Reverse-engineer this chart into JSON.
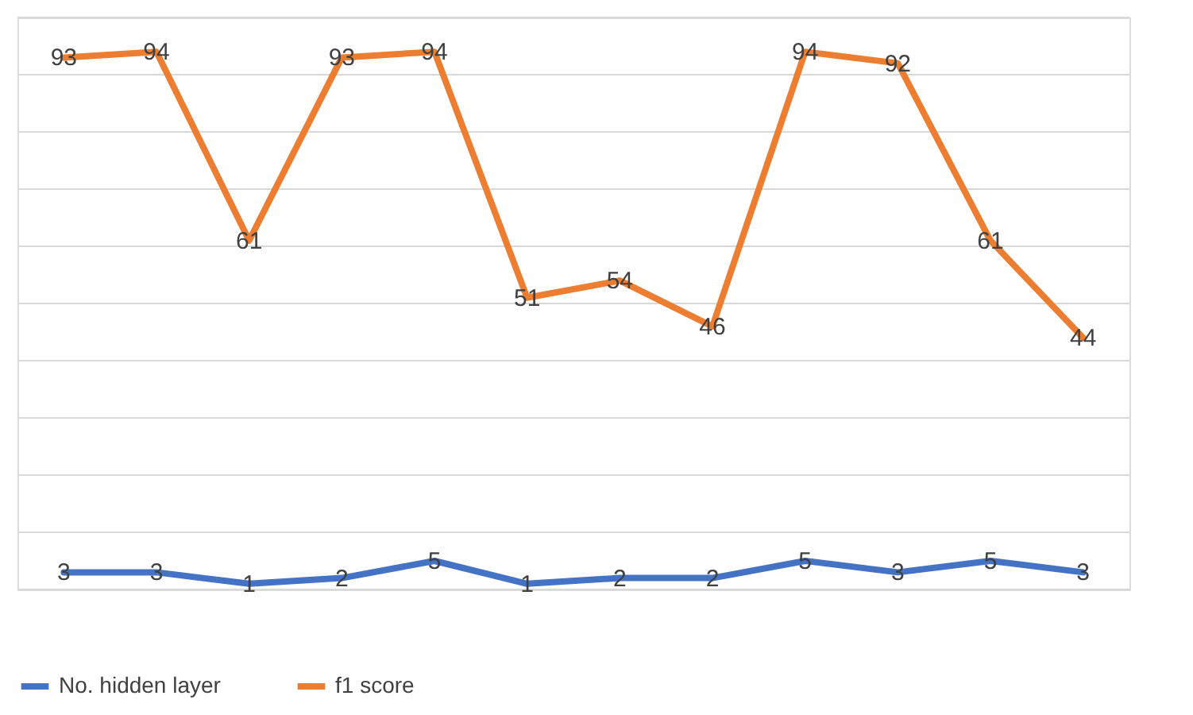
{
  "chart_data": {
    "type": "line",
    "categories": [
      null,
      null,
      null,
      null,
      null,
      null,
      null,
      null,
      null,
      null,
      null,
      null
    ],
    "series": [
      {
        "name": "No. hidden layer",
        "color": "#4472c4",
        "values": [
          3,
          3,
          1,
          2,
          5,
          1,
          2,
          2,
          5,
          3,
          5,
          3
        ]
      },
      {
        "name": "f1 score",
        "color": "#ed7d31",
        "values": [
          93,
          94,
          61,
          93,
          94,
          51,
          54,
          46,
          94,
          92,
          61,
          44
        ]
      }
    ],
    "ylim": [
      0,
      100
    ],
    "yticks": [
      {
        "value": 0,
        "label": null
      },
      {
        "value": 10,
        "label": null
      },
      {
        "value": 20,
        "label": null
      },
      {
        "value": 30,
        "label": null
      },
      {
        "value": 40,
        "label": null
      },
      {
        "value": 50,
        "label": null
      },
      {
        "value": 60,
        "label": null
      },
      {
        "value": 70,
        "label": null
      },
      {
        "value": 80,
        "label": null
      },
      {
        "value": 90,
        "label": null
      },
      {
        "value": 100,
        "label": null
      }
    ],
    "grid": "y",
    "tick_labels": false,
    "data_labels": true,
    "legend": "bottom",
    "marker": "none",
    "line_style": "solid"
  }
}
